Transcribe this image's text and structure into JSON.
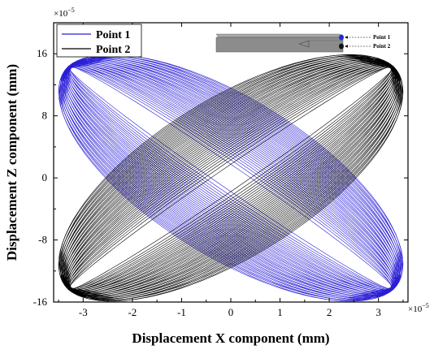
{
  "chart_data": {
    "type": "line",
    "xlabel": "Displacement X component (mm)",
    "ylabel": "Displacement Z component (mm)",
    "x_exponent_base": "×10",
    "x_exponent_power": "−5",
    "y_exponent_base": "×10",
    "y_exponent_power": "−5",
    "xlim": [
      -3.6,
      3.6
    ],
    "ylim": [
      -16,
      20
    ],
    "xticks": [
      -3,
      -2,
      -1,
      0,
      1,
      2,
      3
    ],
    "xtick_labels": [
      "-3",
      "-2",
      "-1",
      "0",
      "1",
      "2",
      "3"
    ],
    "yticks": [
      -16,
      -8,
      0,
      8,
      16
    ],
    "ytick_labels": [
      "-16",
      "-8",
      "0",
      "8",
      "16"
    ],
    "legend_position": "top-left",
    "series": [
      {
        "name": "Point 1",
        "color": "#2a1fd6",
        "direction": "negative",
        "endpoints": [
          [
            -3.35,
            14.6
          ],
          [
            3.35,
            -14.6
          ]
        ],
        "loops": 40,
        "min_thickness": 0.06,
        "max_thickness": 0.42
      },
      {
        "name": "Point 2",
        "color": "#000000",
        "direction": "positive",
        "endpoints": [
          [
            -3.35,
            -14.6
          ],
          [
            3.35,
            14.6
          ]
        ],
        "loops": 40,
        "min_thickness": 0.06,
        "max_thickness": 0.42
      }
    ],
    "inset": {
      "labels": [
        "Point 1",
        "Point 2"
      ],
      "marker_colors": [
        "#1f2bd9",
        "#111111"
      ],
      "beam_color": "#8c8c8c"
    }
  }
}
